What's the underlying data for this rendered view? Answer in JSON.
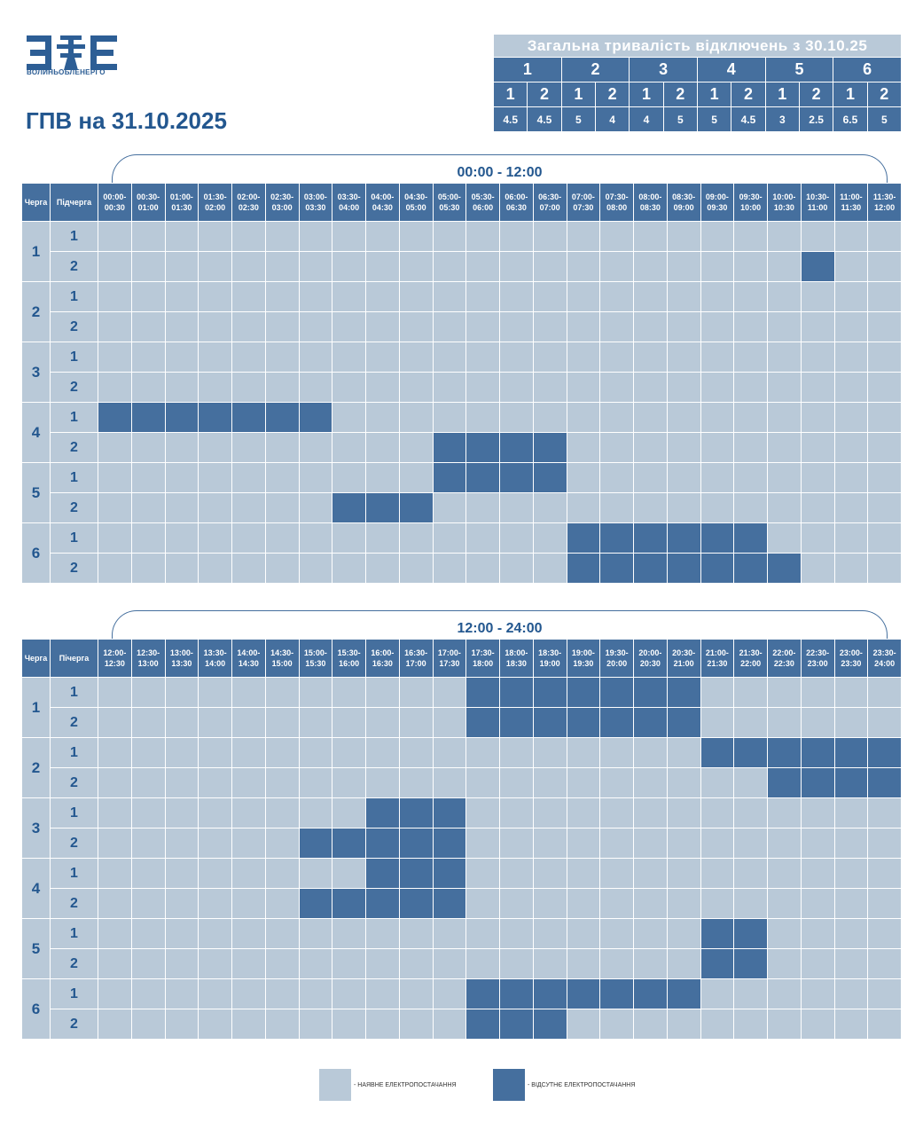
{
  "header": {
    "logo_text": "ВОЛИНЬОБЛЕНЕРГО",
    "title": "ГПВ на 31.10.2025"
  },
  "summary": {
    "title": "Загальна тривалість відключень з 30.10.25",
    "queues": [
      "1",
      "2",
      "3",
      "4",
      "5",
      "6"
    ],
    "subqueues": [
      "1",
      "2",
      "1",
      "2",
      "1",
      "2",
      "1",
      "2",
      "1",
      "2",
      "1",
      "2"
    ],
    "values": [
      "4.5",
      "4.5",
      "5",
      "4",
      "4",
      "5",
      "5",
      "4.5",
      "3",
      "2.5",
      "6.5",
      "5"
    ]
  },
  "colors": {
    "available": "#b9c9d8",
    "absent": "#456f9e",
    "text_accent": "#23578f"
  },
  "grids": [
    {
      "range_label": "00:00 - 12:00",
      "queue_header": "Черга",
      "subqueue_header": "Підчерга",
      "slots": [
        "00:00-\n00:30",
        "00:30-\n01:00",
        "01:00-\n01:30",
        "01:30-\n02:00",
        "02:00-\n02:30",
        "02:30-\n03:00",
        "03:00-\n03:30",
        "03:30-\n04:00",
        "04:00-\n04:30",
        "04:30-\n05:00",
        "05:00-\n05:30",
        "05:30-\n06:00",
        "06:00-\n06:30",
        "06:30-\n07:00",
        "07:00-\n07:30",
        "07:30-\n08:00",
        "08:00-\n08:30",
        "08:30-\n09:00",
        "09:00-\n09:30",
        "09:30-\n10:00",
        "10:00-\n10:30",
        "10:30-\n11:00",
        "11:00-\n11:30",
        "11:30-\n12:00"
      ],
      "rows": [
        {
          "queue": "1",
          "sub": "1",
          "off": "000000000000000000000000"
        },
        {
          "queue": "1",
          "sub": "2",
          "off": "000000000000000000000100"
        },
        {
          "queue": "2",
          "sub": "1",
          "off": "000000000000000000000000"
        },
        {
          "queue": "2",
          "sub": "2",
          "off": "000000000000000000000000"
        },
        {
          "queue": "3",
          "sub": "1",
          "off": "000000000000000000000000"
        },
        {
          "queue": "3",
          "sub": "2",
          "off": "000000000000000000000000"
        },
        {
          "queue": "4",
          "sub": "1",
          "off": "111111100000000000000000"
        },
        {
          "queue": "4",
          "sub": "2",
          "off": "000000000011110000000000"
        },
        {
          "queue": "5",
          "sub": "1",
          "off": "000000000011110000000000"
        },
        {
          "queue": "5",
          "sub": "2",
          "off": "000000011100000000000000"
        },
        {
          "queue": "6",
          "sub": "1",
          "off": "000000000000001111110000"
        },
        {
          "queue": "6",
          "sub": "2",
          "off": "000000000000001111111000"
        }
      ]
    },
    {
      "range_label": "12:00 - 24:00",
      "queue_header": "Черга",
      "subqueue_header": "Пічерга",
      "slots": [
        "12:00-\n12:30",
        "12:30-\n13:00",
        "13:00-\n13:30",
        "13:30-\n14:00",
        "14:00-\n14:30",
        "14:30-\n15:00",
        "15:00-\n15:30",
        "15:30-\n16:00",
        "16:00-\n16:30",
        "16:30-\n17:00",
        "17:00-\n17:30",
        "17:30-\n18:00",
        "18:00-\n18:30",
        "18:30-\n19:00",
        "19:00-\n19:30",
        "19:30-\n20:00",
        "20:00-\n20:30",
        "20:30-\n21:00",
        "21:00-\n21:30",
        "21:30-\n22:00",
        "22:00-\n22:30",
        "22:30-\n23:00",
        "23:00-\n23:30",
        "23:30-\n24:00"
      ],
      "rows": [
        {
          "queue": "1",
          "sub": "1",
          "off": "000000000001111111000000"
        },
        {
          "queue": "1",
          "sub": "2",
          "off": "000000000001111111000000"
        },
        {
          "queue": "2",
          "sub": "1",
          "off": "000000000000000000111111"
        },
        {
          "queue": "2",
          "sub": "2",
          "off": "000000000000000000001111"
        },
        {
          "queue": "3",
          "sub": "1",
          "off": "000000001110000000000000"
        },
        {
          "queue": "3",
          "sub": "2",
          "off": "000000111110000000000000"
        },
        {
          "queue": "4",
          "sub": "1",
          "off": "000000001110000000000000"
        },
        {
          "queue": "4",
          "sub": "2",
          "off": "000000111110000000000000"
        },
        {
          "queue": "5",
          "sub": "1",
          "off": "000000000000000000110000"
        },
        {
          "queue": "5",
          "sub": "2",
          "off": "000000000000000000110000"
        },
        {
          "queue": "6",
          "sub": "1",
          "off": "000000000001111111000000"
        },
        {
          "queue": "6",
          "sub": "2",
          "off": "000000000001110000000000"
        }
      ]
    }
  ],
  "legend": {
    "available_label": "- НАЯВНЕ ЕЛЕКТРОПОСТАЧАННЯ",
    "absent_label": "- ВІДСУТНЄ ЕЛЕКТРОПОСТАЧАННЯ"
  }
}
